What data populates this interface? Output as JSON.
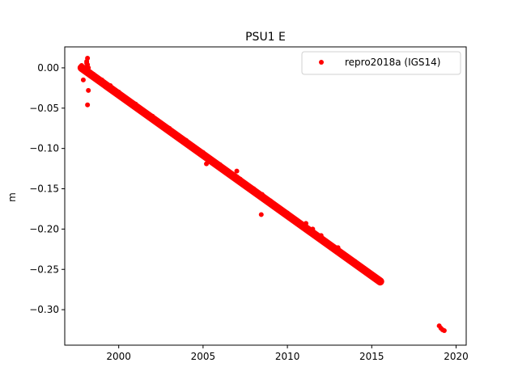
{
  "chart_data": {
    "type": "scatter",
    "title": "PSU1 E",
    "xlabel": "",
    "ylabel": "m",
    "xlim": [
      1996.8,
      2020.6
    ],
    "ylim": [
      -0.344,
      0.026
    ],
    "xticks": [
      2000,
      2005,
      2010,
      2015,
      2020
    ],
    "yticks": [
      0.0,
      -0.05,
      -0.1,
      -0.15,
      -0.2,
      -0.25,
      -0.3
    ],
    "ytick_labels": [
      "0.00",
      "−0.05",
      "−0.10",
      "−0.15",
      "−0.20",
      "−0.25",
      "−0.30"
    ],
    "grid": false,
    "legend": {
      "placement": "top-right"
    },
    "series": [
      {
        "name": "repro2018a (IGS14)",
        "color": "#ff0000",
        "marker": "circle",
        "trend": {
          "x": [
            1997.8,
            2015.5
          ],
          "y": [
            0.0,
            -0.265
          ]
        },
        "points": {
          "x": [
            1997.8,
            1997.9,
            1998.0,
            1998.1,
            1998.15,
            1998.2,
            1998.3,
            1998.5,
            1999.0,
            1999.5,
            2000.0,
            2001.0,
            2002.0,
            2003.0,
            2003.5,
            2004.0,
            2005.0,
            2005.2,
            2006.0,
            2007.0,
            2007.2,
            2008.0,
            2008.5,
            2009.0,
            2010.0,
            2011.0,
            2011.5,
            2012.0,
            2013.0,
            2014.0,
            2015.0,
            2015.4,
            2015.5,
            2019.0,
            2019.1,
            2019.2,
            2019.3,
            1997.9,
            1998.05,
            1998.15,
            1998.2,
            1998.15,
            1998.3,
            1998.1,
            2003.3,
            2005.2,
            2007.0,
            2008.45,
            2011.1
          ],
          "y": [
            0.003,
            0.001,
            -0.002,
            0.006,
            0.004,
            0.0,
            -0.005,
            -0.008,
            -0.015,
            -0.022,
            -0.03,
            -0.045,
            -0.06,
            -0.075,
            -0.083,
            -0.09,
            -0.105,
            -0.11,
            -0.12,
            -0.135,
            -0.138,
            -0.15,
            -0.157,
            -0.165,
            -0.18,
            -0.195,
            -0.2,
            -0.208,
            -0.223,
            -0.24,
            -0.257,
            -0.262,
            -0.265,
            -0.32,
            -0.323,
            -0.325,
            -0.326,
            -0.015,
            -0.005,
            0.012,
            -0.028,
            -0.046,
            -0.01,
            0.008,
            -0.082,
            -0.119,
            -0.128,
            -0.182,
            -0.193
          ]
        }
      }
    ]
  }
}
